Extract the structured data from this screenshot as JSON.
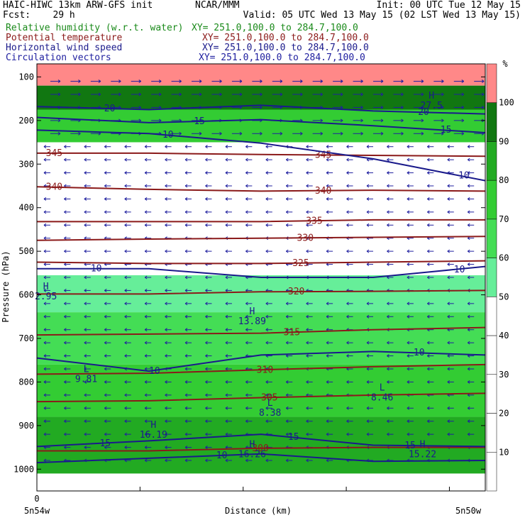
{
  "header": {
    "left1": "HAIC-HIWC 13km ARW-GFS init",
    "center1": "NCAR/MMM",
    "right1": "Init: 00 UTC Tue 12 May 15",
    "left2": "Fcst:    29 h",
    "right2": "Valid: 05 UTC Wed 13 May 15 (02 LST Wed 13 May 15)",
    "field1": "Relative humidity (w.r.t. water)",
    "xy1": "XY= 251.0,100.0 to 284.7,100.0",
    "field2": "Potential temperature",
    "xy2": "XY= 251.0,100.0 to 284.7,100.0",
    "field3": "Horizontal wind speed",
    "xy3": "XY= 251.0,100.0 to 284.7,100.0",
    "field4": "Circulation vectors",
    "xy4": "XY= 251.0,100.0 to 284.7,100.0",
    "colors": {
      "rh": "#1a8a1a",
      "theta": "#8b1a1a",
      "wind": "#1a1a8b",
      "vec": "#2020a0"
    }
  },
  "chart_data": {
    "type": "heatmap",
    "title": "",
    "xlabel": "Distance (km)",
    "ylabel": "Pressure (hPa)",
    "xlim": [
      0,
      100
    ],
    "ylim": [
      1050,
      70
    ],
    "x_ticks": [
      "0"
    ],
    "x_endpoint_labels": [
      "5n54w",
      "5n50w"
    ],
    "y_ticks": [
      100,
      200,
      300,
      400,
      500,
      600,
      700,
      800,
      900,
      1000
    ],
    "colorbar": {
      "unit": "%",
      "levels": [
        10,
        20,
        30,
        40,
        50,
        60,
        70,
        80,
        90,
        100
      ],
      "colors": [
        "#ffffff",
        "#ffffff",
        "#ffffff",
        "#ffffff",
        "#ffffff",
        "#66ee99",
        "#44dd55",
        "#33cc33",
        "#22aa22",
        "#117711",
        "#ff8888"
      ]
    },
    "rh_bands": [
      {
        "p_top": 70,
        "p_bot": 120,
        "level": 100
      },
      {
        "p_top": 120,
        "p_bot": 175,
        "level": 90
      },
      {
        "p_top": 175,
        "p_bot": 250,
        "level": 70
      },
      {
        "p_top": 250,
        "p_bot": 555,
        "level": 0
      },
      {
        "p_top": 555,
        "p_bot": 640,
        "level": 50
      },
      {
        "p_top": 640,
        "p_bot": 760,
        "level": 60
      },
      {
        "p_top": 760,
        "p_bot": 880,
        "level": 70
      },
      {
        "p_top": 880,
        "p_bot": 1010,
        "level": 80
      }
    ],
    "theta_contours": [
      {
        "label": "345",
        "p": [
          275,
          275,
          278,
          280,
          282
        ],
        "label_pos": [
          2,
          62
        ]
      },
      {
        "label": "340",
        "p": [
          352,
          358,
          362,
          360,
          362
        ],
        "label_pos": [
          2,
          62
        ]
      },
      {
        "label": "335",
        "p": [
          432,
          432,
          432,
          428,
          428
        ],
        "label_pos": [
          60
        ]
      },
      {
        "label": "330",
        "p": [
          475,
          472,
          470,
          468,
          466
        ],
        "label_pos": [
          58
        ]
      },
      {
        "label": "325",
        "p": [
          525,
          528,
          528,
          525,
          522
        ],
        "label_pos": [
          57
        ]
      },
      {
        "label": "320",
        "p": [
          598,
          598,
          593,
          592,
          590
        ],
        "label_pos": [
          56
        ]
      },
      {
        "label": "315",
        "p": [
          692,
          690,
          688,
          680,
          675
        ],
        "label_pos": [
          55
        ]
      },
      {
        "label": "310",
        "p": [
          782,
          780,
          772,
          765,
          760
        ],
        "label_pos": [
          49
        ]
      },
      {
        "label": "305",
        "p": [
          845,
          843,
          836,
          830,
          826
        ],
        "label_pos": [
          50
        ]
      },
      {
        "label": "300",
        "p": [
          958,
          958,
          952,
          950,
          950
        ],
        "label_pos": [
          48
        ]
      }
    ],
    "wind_contours": [
      {
        "label": "10",
        "p": [
          222,
          230,
          252,
          288,
          338
        ],
        "label_pos": [
          28,
          94
        ]
      },
      {
        "label": "15",
        "p": [
          193,
          205,
          198,
          212,
          228
        ],
        "label_pos": [
          35,
          90
        ]
      },
      {
        "label": "20",
        "p": [
          168,
          175,
          165,
          178,
          185
        ],
        "label_pos": [
          15,
          85
        ]
      },
      {
        "label": "10",
        "p": [
          540,
          540,
          560,
          560,
          535
        ],
        "label_pos": [
          12,
          93
        ]
      },
      {
        "label": "10",
        "p": [
          745,
          775,
          738,
          730,
          738
        ],
        "label_pos": [
          25,
          84
        ]
      },
      {
        "label": "15",
        "p": [
          948,
          935,
          920,
          945,
          948
        ],
        "label_pos": [
          14,
          56,
          82
        ]
      },
      {
        "label": "10",
        "p": [
          985,
          975,
          965,
          982,
          980
        ],
        "label_pos": [
          40
        ]
      }
    ],
    "extrema": [
      {
        "kind": "H",
        "value": "2.95",
        "x": 2,
        "p": 588
      },
      {
        "kind": "H",
        "value": "13.89",
        "x": 48,
        "p": 645
      },
      {
        "kind": "L",
        "value": "9.81",
        "x": 11,
        "p": 777
      },
      {
        "kind": "L",
        "value": "8.46",
        "x": 77,
        "p": 820
      },
      {
        "kind": "L",
        "value": "8.38",
        "x": 52,
        "p": 855
      },
      {
        "kind": "H",
        "value": "16.19",
        "x": 26,
        "p": 905
      },
      {
        "kind": "H",
        "value": "16.26",
        "x": 48,
        "p": 950
      },
      {
        "kind": "H",
        "value": "15.22",
        "x": 86,
        "p": 950
      },
      {
        "kind": "H",
        "value": "27.5",
        "x": 88,
        "p": 150
      }
    ]
  }
}
